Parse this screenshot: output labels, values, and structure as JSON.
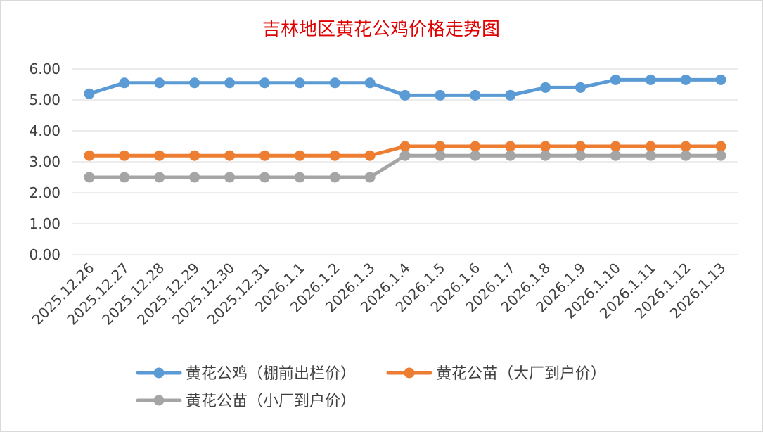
{
  "chart_data": {
    "type": "line",
    "title": "吉林地区黄花公鸡价格走势图",
    "xlabel": "",
    "ylabel": "",
    "ylim": [
      0,
      6
    ],
    "yticks": [
      "0.00",
      "1.00",
      "2.00",
      "3.00",
      "4.00",
      "5.00",
      "6.00"
    ],
    "grid": true,
    "legend_position": "bottom",
    "categories": [
      "2025.12.26",
      "2025.12.27",
      "2025.12.28",
      "2025.12.29",
      "2025.12.30",
      "2025.12.31",
      "2026.1.1",
      "2026.1.2",
      "2026.1.3",
      "2026.1.4",
      "2026.1.5",
      "2026.1.6",
      "2026.1.7",
      "2026.1.8",
      "2026.1.9",
      "2026.1.10",
      "2026.1.11",
      "2026.1.12",
      "2026.1.13"
    ],
    "series": [
      {
        "name": "黄花公鸡（棚前出栏价）",
        "color": "#5b9bd5",
        "values": [
          5.2,
          5.55,
          5.55,
          5.55,
          5.55,
          5.55,
          5.55,
          5.55,
          5.55,
          5.15,
          5.15,
          5.15,
          5.15,
          5.4,
          5.4,
          5.65,
          5.65,
          5.65,
          5.65
        ]
      },
      {
        "name": "黄花公苗（大厂到户价）",
        "color": "#ed7d31",
        "values": [
          3.2,
          3.2,
          3.2,
          3.2,
          3.2,
          3.2,
          3.2,
          3.2,
          3.2,
          3.5,
          3.5,
          3.5,
          3.5,
          3.5,
          3.5,
          3.5,
          3.5,
          3.5,
          3.5
        ]
      },
      {
        "name": "黄花公苗（小厂到户价）",
        "color": "#a5a5a5",
        "values": [
          2.5,
          2.5,
          2.5,
          2.5,
          2.5,
          2.5,
          2.5,
          2.5,
          2.5,
          3.2,
          3.2,
          3.2,
          3.2,
          3.2,
          3.2,
          3.2,
          3.2,
          3.2,
          3.2
        ]
      }
    ],
    "colors": {
      "title": "#e00000",
      "grid": "#d9d9d9",
      "border": "#d9d9d9",
      "text": "#404040"
    }
  }
}
